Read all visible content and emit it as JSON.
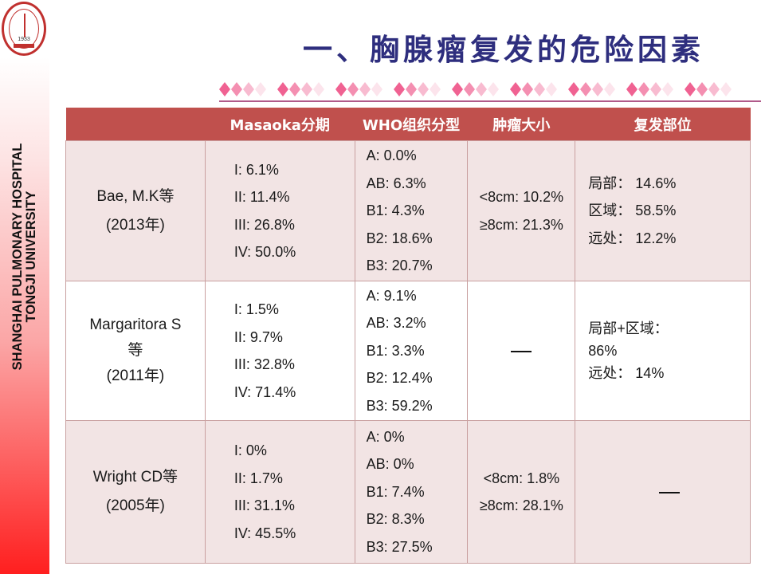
{
  "logo": {
    "year": "1933",
    "label": "hospital-logo"
  },
  "sidebar": {
    "line1": "SHANGHAI PULMONARY HOSPITAL",
    "line2": "TONGJI UNIVERSITY"
  },
  "title": "一、胸腺瘤复发的危险因素",
  "decor": {
    "group_count": 9,
    "colors": [
      "#f06292",
      "#f48fb1",
      "#f8bbd0",
      "#fce4ec"
    ],
    "rule_color": "#b05a8a"
  },
  "colors": {
    "header_bg": "#c0504d",
    "row_odd": "#f2e4e4",
    "row_even": "#ffffff",
    "title": "#2e2e7e"
  },
  "table": {
    "headers": [
      "",
      "Masaoka分期",
      "WHO组织分型",
      "肿瘤大小",
      "复发部位"
    ],
    "rows": [
      {
        "author": "Bae, M.K等",
        "author_extra": "",
        "year": "(2013年)",
        "masaoka": [
          "I: 6.1%",
          "II: 11.4%",
          "III: 26.8%",
          "IV: 50.0%"
        ],
        "who": [
          "A: 0.0%",
          "AB: 6.3%",
          "B1: 4.3%",
          "B2: 18.6%",
          "B3: 20.7%"
        ],
        "size": [
          "<8cm: 10.2%",
          "≥8cm: 21.3%"
        ],
        "site": [
          "局部：  14.6%",
          "区域：  58.5%",
          "远处：  12.2%"
        ]
      },
      {
        "author": "Margaritora S",
        "author_extra": "等",
        "year": "(2011年)",
        "masaoka": [
          "I: 1.5%",
          "II: 9.7%",
          "III: 32.8%",
          "IV: 71.4%"
        ],
        "who": [
          "A: 9.1%",
          "AB: 3.2%",
          "B1: 3.3%",
          "B2: 12.4%",
          "B3: 59.2%"
        ],
        "size": [
          "—"
        ],
        "site": [
          "局部+区域：",
          "86%",
          "远处：  14%"
        ]
      },
      {
        "author": "Wright CD等",
        "author_extra": "",
        "year": "(2005年)",
        "masaoka": [
          "I: 0%",
          "II: 1.7%",
          "III: 31.1%",
          "IV: 45.5%"
        ],
        "who": [
          "A: 0%",
          "AB: 0%",
          "B1: 7.4%",
          "B2: 8.3%",
          "B3: 27.5%"
        ],
        "size": [
          "<8cm: 1.8%",
          "≥8cm: 28.1%"
        ],
        "site": [
          "—"
        ]
      }
    ]
  }
}
